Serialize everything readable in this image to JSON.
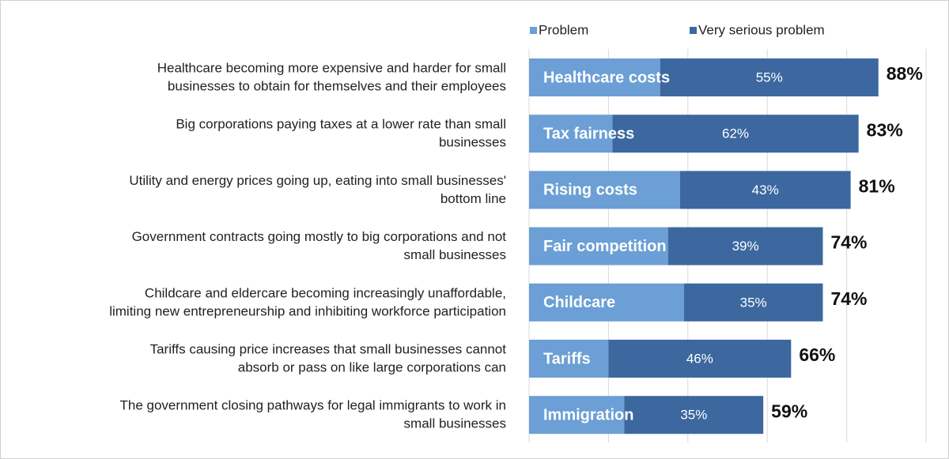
{
  "chart_data": {
    "type": "stacked-bar-horizontal",
    "labels": [
      [
        "Healthcare becoming more expensive and harder for small",
        "businesses to obtain for themselves and their employees"
      ],
      [
        "Big corporations paying taxes at a lower rate than small",
        "businesses"
      ],
      [
        "Utility and energy prices going up, eating into small businesses'",
        "bottom line"
      ],
      [
        "Government contracts going mostly to big corporations and not",
        "small businesses"
      ],
      [
        "Childcare and eldercare becoming increasingly unaffordable,",
        "limiting new entrepreneurship and inhibiting workforce participation"
      ],
      [
        "Tariffs causing price increases that small businesses cannot",
        "absorb or pass on like large corporations can"
      ],
      [
        "The government closing pathways for legal immigrants to work in",
        "small businesses"
      ]
    ],
    "categories": [
      "Healthcare costs",
      "Tax fairness",
      "Rising costs",
      "Fair competition",
      "Childcare",
      "Tariffs",
      "Immigration"
    ],
    "series": [
      {
        "name": "Problem",
        "color": "#6b9fd5",
        "values": [
          33,
          21,
          38,
          35,
          39,
          20,
          24
        ]
      },
      {
        "name": "Very serious problem",
        "color": "#3c689f",
        "values": [
          55,
          62,
          43,
          39,
          35,
          46,
          35
        ],
        "value_labels": [
          "55%",
          "62%",
          "43%",
          "39%",
          "35%",
          "46%",
          "35%"
        ]
      }
    ],
    "totals": {
      "values": [
        88,
        83,
        81,
        74,
        74,
        66,
        59
      ],
      "value_labels": [
        "88%",
        "83%",
        "81%",
        "74%",
        "74%",
        "66%",
        "59%"
      ]
    },
    "xlim": [
      0,
      100
    ],
    "xticks": [
      0,
      20,
      40,
      60,
      80,
      100
    ],
    "grid": true
  }
}
